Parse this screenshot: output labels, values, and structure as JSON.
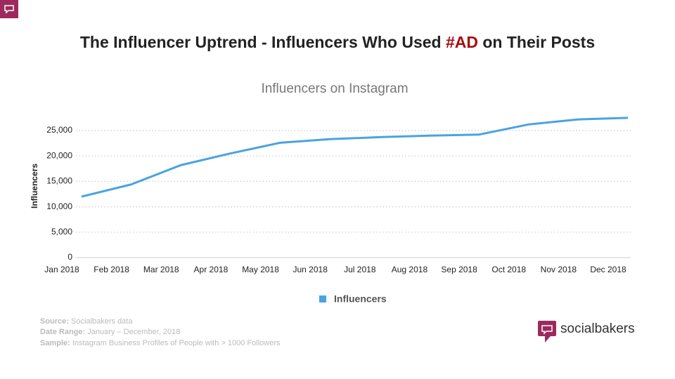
{
  "header": {
    "title_parts": [
      "The Influencer Uptrend - Influencers Who Used ",
      "#AD",
      " on Their Posts"
    ]
  },
  "chart_data": {
    "type": "line",
    "title": "Influencers on Instagram",
    "ylabel": "Influencers",
    "categories": [
      "Jan 2018",
      "Feb 2018",
      "Mar 2018",
      "Apr 2018",
      "May 2018",
      "Jun 2018",
      "Jul 2018",
      "Aug 2018",
      "Sep 2018",
      "Oct 2018",
      "Nov 2018",
      "Dec 2018"
    ],
    "series": [
      {
        "name": "Influencers",
        "color": "#4aa3df",
        "values": [
          12000,
          14400,
          18200,
          20500,
          22600,
          23300,
          23700,
          24000,
          24200,
          26200,
          27200,
          27500
        ]
      }
    ],
    "ylim": [
      0,
      30000
    ],
    "yticks": [
      0,
      {
        "value": 5000,
        "label": "5,000"
      },
      {
        "value": 10000,
        "label": "10,000"
      },
      {
        "value": 15000,
        "label": "15,000"
      },
      {
        "value": 20000,
        "label": "20,000"
      },
      {
        "value": 25000,
        "label": "25,000"
      }
    ],
    "grid": true,
    "legend": "bottom"
  },
  "footer": {
    "lines": [
      {
        "label": "Source:",
        "text": "Socialbakers data"
      },
      {
        "label": "Date Range:",
        "text": "January – December, 2018"
      },
      {
        "label": "Sample:",
        "text": "Instagram Business Profiles of People with > 1000 Followers"
      }
    ]
  },
  "logo": {
    "text": "socialbakers"
  }
}
